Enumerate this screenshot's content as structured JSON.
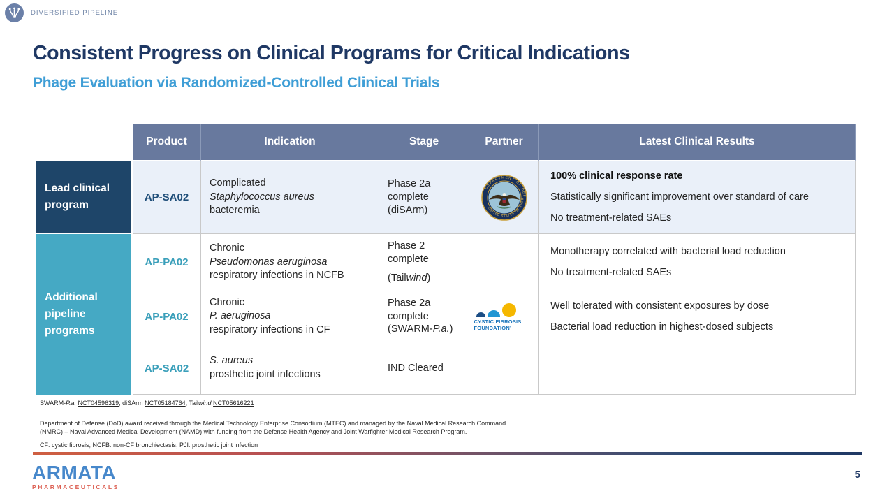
{
  "badge": {
    "label": "DIVERSIFIED PIPELINE"
  },
  "header": {
    "title": "Consistent Progress on Clinical Programs for Critical Indications",
    "subtitle": "Phage Evaluation via Randomized-Controlled Clinical Trials"
  },
  "colors": {
    "title_navy": "#1F3864",
    "subtitle_blue": "#3F9ED6",
    "table_header_bg": "#68799E",
    "lead_group_bg": "#1E4569",
    "additional_group_bg": "#45A9C4",
    "lead_row_bg": "#EAF0F9",
    "product_lead_text": "#1F4E79",
    "product_pipeline_text": "#3A9FBA",
    "armata_blue": "#4788CB",
    "armata_red": "#DC5F52"
  },
  "table": {
    "headers": [
      "Product",
      "Indication",
      "Stage",
      "Partner",
      "Latest Clinical Results"
    ],
    "groups": {
      "lead": "Lead clinical program",
      "additional": "Additional pipeline programs"
    },
    "rows": [
      {
        "product": "AP-SA02",
        "indication": [
          {
            "t": "Complicated "
          },
          {
            "t": "Staphylococcus aureus",
            "i": 1
          },
          {
            "t": " bacteremia"
          }
        ],
        "stage": [
          {
            "segs": [
              {
                "t": "Phase 2a complete (diSArm)"
              }
            ]
          }
        ],
        "partner": "department-of-defense-seal",
        "results": [
          {
            "bold": 1,
            "segs": [
              {
                "t": "100% clinical response rate"
              }
            ]
          },
          {
            "segs": [
              {
                "t": "Statistically significant improvement over standard of care"
              }
            ]
          },
          {
            "segs": [
              {
                "t": "No treatment-related SAEs"
              }
            ]
          }
        ]
      },
      {
        "product": "AP-PA02",
        "indication": [
          {
            "t": "Chronic "
          },
          {
            "t": "Pseudomonas aeruginosa",
            "i": 1
          },
          {
            "t": " respiratory infections in NCFB"
          }
        ],
        "stage": [
          {
            "segs": [
              {
                "t": "Phase 2 complete"
              }
            ]
          },
          {
            "segs": [
              {
                "t": "(Tail"
              },
              {
                "t": "wind",
                "i": 1
              },
              {
                "t": ")"
              }
            ]
          }
        ],
        "partner": "",
        "results": [
          {
            "segs": [
              {
                "t": "Monotherapy correlated with bacterial load reduction"
              }
            ]
          },
          {
            "segs": [
              {
                "t": "No treatment-related SAEs"
              }
            ]
          }
        ]
      },
      {
        "product": "AP-PA02",
        "indication": [
          {
            "t": "Chronic "
          },
          {
            "t": "P. aeruginosa",
            "i": 1
          },
          {
            "t": " respiratory infections in CF"
          }
        ],
        "stage": [
          {
            "segs": [
              {
                "t": "Phase 2a complete (SWARM-"
              },
              {
                "t": "P.a.",
                "i": 1
              },
              {
                "t": ")"
              }
            ]
          }
        ],
        "partner": "cystic-fibrosis-foundation-logo",
        "results": [
          {
            "segs": [
              {
                "t": "Well tolerated with consistent exposures by dose"
              }
            ]
          },
          {
            "segs": [
              {
                "t": "Bacterial load reduction in highest-dosed subjects"
              }
            ]
          }
        ]
      },
      {
        "product": "AP-SA02",
        "indication": [
          {
            "t": "S. aureus",
            "i": 1
          },
          {
            "t": " prosthetic joint infections"
          }
        ],
        "stage": [
          {
            "segs": [
              {
                "t": "IND Cleared"
              }
            ]
          }
        ],
        "partner": "",
        "results": []
      }
    ]
  },
  "partners": {
    "cff": {
      "line1": "CYSTIC FIBROSIS",
      "line2": "FOUNDATIONʹ"
    }
  },
  "footnotes": {
    "trials": [
      {
        "t": "SWARM-"
      },
      {
        "t": "P.a.",
        "i": 1
      },
      {
        "t": " "
      },
      {
        "t": "NCT04596319",
        "u": 1
      },
      {
        "t": "; diSArm "
      },
      {
        "t": "NCT05184764",
        "u": 1
      },
      {
        "t": "; Tail"
      },
      {
        "t": "wind",
        "i": 1
      },
      {
        "t": " "
      },
      {
        "t": "NCT05616221",
        "u": 1
      }
    ],
    "dod_award": "Department of Defense (DoD) award received through the Medical Technology Enterprise Consortium (MTEC) and managed by the Naval Medical Research Command (NMRC) – Naval Advanced Medical Development (NAMD) with funding from the Defense Health Agency and Joint Warfighter Medical Research Program.",
    "abbreviations": "CF: cystic fibrosis; NCFB: non-CF bronchiectasis; PJI: prosthetic joint infection"
  },
  "footer": {
    "brand": "ARMATA",
    "brand_sub": "PHARMACEUTICALS",
    "page_number": "5"
  }
}
